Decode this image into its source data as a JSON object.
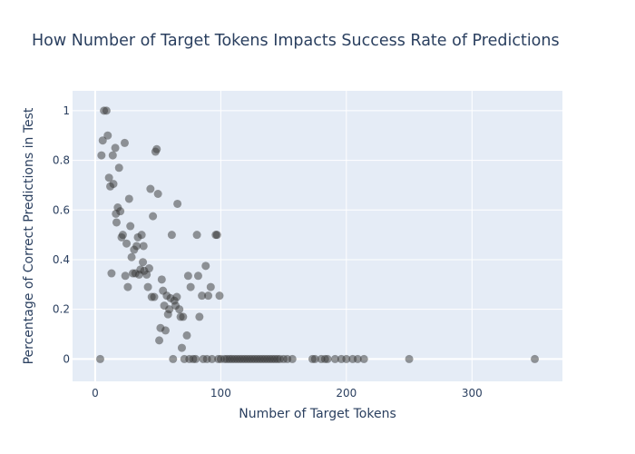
{
  "chart_data": {
    "type": "scatter",
    "title": "How Number of Target Tokens Impacts Success Rate of Predictions",
    "xlabel": "Number of Target Tokens",
    "ylabel": "Percentage of Correct Predictions in Test",
    "xlim": [
      -18,
      372
    ],
    "ylim": [
      -0.09,
      1.08
    ],
    "xticks": [
      0,
      100,
      200,
      300
    ],
    "yticks": [
      0,
      0.2,
      0.4,
      0.6,
      0.8,
      1
    ],
    "xtick_labels": [
      "0",
      "100",
      "200",
      "300"
    ],
    "ytick_labels": [
      "0",
      "0.2",
      "0.4",
      "0.6",
      "0.8",
      "1"
    ],
    "grid": true,
    "colors": {
      "plot_bg": "#e5ecf6",
      "grid": "#ffffff",
      "marker": "#333333",
      "text": "#2a3f5f"
    },
    "points": [
      {
        "x": 4,
        "y": 0
      },
      {
        "x": 5,
        "y": 0.82
      },
      {
        "x": 6,
        "y": 0.88
      },
      {
        "x": 7,
        "y": 1.0
      },
      {
        "x": 9,
        "y": 1.0
      },
      {
        "x": 10,
        "y": 0.9
      },
      {
        "x": 11,
        "y": 0.73
      },
      {
        "x": 12,
        "y": 0.695
      },
      {
        "x": 13,
        "y": 0.345
      },
      {
        "x": 14,
        "y": 0.82
      },
      {
        "x": 14.5,
        "y": 0.705
      },
      {
        "x": 16,
        "y": 0.85
      },
      {
        "x": 16.5,
        "y": 0.585
      },
      {
        "x": 17,
        "y": 0.55
      },
      {
        "x": 18,
        "y": 0.61
      },
      {
        "x": 19,
        "y": 0.77
      },
      {
        "x": 20,
        "y": 0.595
      },
      {
        "x": 21,
        "y": 0.49
      },
      {
        "x": 22,
        "y": 0.5
      },
      {
        "x": 23.5,
        "y": 0.87
      },
      {
        "x": 24,
        "y": 0.335
      },
      {
        "x": 25,
        "y": 0.465
      },
      {
        "x": 26,
        "y": 0.29
      },
      {
        "x": 27,
        "y": 0.645
      },
      {
        "x": 28,
        "y": 0.535
      },
      {
        "x": 29,
        "y": 0.41
      },
      {
        "x": 30,
        "y": 0.345
      },
      {
        "x": 31,
        "y": 0.44
      },
      {
        "x": 32,
        "y": 0.345
      },
      {
        "x": 33,
        "y": 0.455
      },
      {
        "x": 34,
        "y": 0.49
      },
      {
        "x": 35,
        "y": 0.34
      },
      {
        "x": 36,
        "y": 0.36
      },
      {
        "x": 37,
        "y": 0.5
      },
      {
        "x": 38,
        "y": 0.39
      },
      {
        "x": 38.5,
        "y": 0.455
      },
      {
        "x": 39,
        "y": 0.355
      },
      {
        "x": 41,
        "y": 0.34
      },
      {
        "x": 42,
        "y": 0.29
      },
      {
        "x": 43,
        "y": 0.365
      },
      {
        "x": 44,
        "y": 0.685
      },
      {
        "x": 45,
        "y": 0.25
      },
      {
        "x": 46,
        "y": 0.575
      },
      {
        "x": 47,
        "y": 0.25
      },
      {
        "x": 48,
        "y": 0.835
      },
      {
        "x": 49,
        "y": 0.845
      },
      {
        "x": 50,
        "y": 0.665
      },
      {
        "x": 51,
        "y": 0.075
      },
      {
        "x": 52,
        "y": 0.125
      },
      {
        "x": 53,
        "y": 0.32
      },
      {
        "x": 54,
        "y": 0.275
      },
      {
        "x": 55,
        "y": 0.215
      },
      {
        "x": 56,
        "y": 0.115
      },
      {
        "x": 57,
        "y": 0.255
      },
      {
        "x": 58,
        "y": 0.18
      },
      {
        "x": 59,
        "y": 0.2
      },
      {
        "x": 60,
        "y": 0.245
      },
      {
        "x": 61,
        "y": 0.5
      },
      {
        "x": 62,
        "y": 0.0
      },
      {
        "x": 63,
        "y": 0.235
      },
      {
        "x": 64,
        "y": 0.215
      },
      {
        "x": 65,
        "y": 0.25
      },
      {
        "x": 65.5,
        "y": 0.625
      },
      {
        "x": 67,
        "y": 0.2
      },
      {
        "x": 68,
        "y": 0.17
      },
      {
        "x": 69,
        "y": 0.045
      },
      {
        "x": 70,
        "y": 0.17
      },
      {
        "x": 71,
        "y": 0.0
      },
      {
        "x": 73,
        "y": 0.095
      },
      {
        "x": 74,
        "y": 0.335
      },
      {
        "x": 75,
        "y": 0.0
      },
      {
        "x": 76,
        "y": 0.29
      },
      {
        "x": 78,
        "y": 0.0
      },
      {
        "x": 80,
        "y": 0.0
      },
      {
        "x": 81,
        "y": 0.5
      },
      {
        "x": 82,
        "y": 0.335
      },
      {
        "x": 83,
        "y": 0.17
      },
      {
        "x": 85,
        "y": 0.255
      },
      {
        "x": 86,
        "y": 0.0
      },
      {
        "x": 88,
        "y": 0.375
      },
      {
        "x": 89,
        "y": 0.0
      },
      {
        "x": 90,
        "y": 0.255
      },
      {
        "x": 92,
        "y": 0.29
      },
      {
        "x": 93,
        "y": 0.0
      },
      {
        "x": 96,
        "y": 0.5
      },
      {
        "x": 97,
        "y": 0.5
      },
      {
        "x": 98,
        "y": 0.0
      },
      {
        "x": 99,
        "y": 0.255
      },
      {
        "x": 100,
        "y": 0.0
      },
      {
        "x": 103,
        "y": 0.0
      },
      {
        "x": 105,
        "y": 0.0
      },
      {
        "x": 107,
        "y": 0.0
      },
      {
        "x": 109,
        "y": 0.0
      },
      {
        "x": 111,
        "y": 0.0
      },
      {
        "x": 113,
        "y": 0.0
      },
      {
        "x": 115,
        "y": 0.0
      },
      {
        "x": 117,
        "y": 0.0
      },
      {
        "x": 119,
        "y": 0.0
      },
      {
        "x": 121,
        "y": 0.0
      },
      {
        "x": 123,
        "y": 0.0
      },
      {
        "x": 125,
        "y": 0.0
      },
      {
        "x": 127,
        "y": 0.0
      },
      {
        "x": 129,
        "y": 0.0
      },
      {
        "x": 131,
        "y": 0.0
      },
      {
        "x": 133,
        "y": 0.0
      },
      {
        "x": 135,
        "y": 0.0
      },
      {
        "x": 137,
        "y": 0.0
      },
      {
        "x": 139,
        "y": 0.0
      },
      {
        "x": 141,
        "y": 0.0
      },
      {
        "x": 143,
        "y": 0.0
      },
      {
        "x": 145,
        "y": 0.0
      },
      {
        "x": 147,
        "y": 0.0
      },
      {
        "x": 150,
        "y": 0.0
      },
      {
        "x": 153,
        "y": 0.0
      },
      {
        "x": 157,
        "y": 0.0
      },
      {
        "x": 173,
        "y": 0.0
      },
      {
        "x": 175,
        "y": 0.0
      },
      {
        "x": 180,
        "y": 0.0
      },
      {
        "x": 183,
        "y": 0.0
      },
      {
        "x": 185,
        "y": 0.0
      },
      {
        "x": 191,
        "y": 0.0
      },
      {
        "x": 196,
        "y": 0.0
      },
      {
        "x": 200,
        "y": 0.0
      },
      {
        "x": 205,
        "y": 0.0
      },
      {
        "x": 209,
        "y": 0.0
      },
      {
        "x": 214,
        "y": 0.0
      },
      {
        "x": 250,
        "y": 0.0
      },
      {
        "x": 350,
        "y": 0.0
      }
    ]
  }
}
